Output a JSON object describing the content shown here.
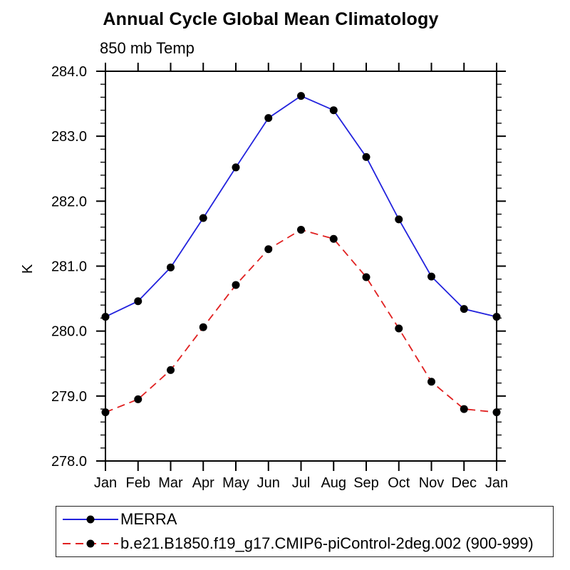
{
  "chart_data": {
    "type": "line",
    "title": "Annual Cycle Global Mean Climatology",
    "left_string": "850 mb Temp",
    "ylabel": "K",
    "xlabel": "",
    "ylim": [
      278.0,
      284.0
    ],
    "ytick_labels": [
      "278.0",
      "279.0",
      "280.0",
      "281.0",
      "282.0",
      "283.0",
      "284.0"
    ],
    "ytick_minor_interval": 0.2,
    "categories": [
      "Jan",
      "Feb",
      "Mar",
      "Apr",
      "May",
      "Jun",
      "Jul",
      "Aug",
      "Sep",
      "Oct",
      "Nov",
      "Dec",
      "Jan"
    ],
    "grid": false,
    "legend_position": "bottom-left",
    "frame_color": "#000000",
    "marker": "filled-circle",
    "marker_color": "#000000",
    "series": [
      {
        "name": "MERRA",
        "color": "#2222dd",
        "line_style": "solid",
        "values": [
          280.22,
          280.46,
          280.98,
          281.74,
          282.52,
          283.28,
          283.62,
          283.4,
          282.68,
          281.72,
          280.84,
          280.34,
          280.22
        ]
      },
      {
        "name": "b.e21.B1850.f19_g17.CMIP6-piControl-2deg.002 (900-999)",
        "color": "#e02020",
        "line_style": "dashed",
        "values": [
          278.75,
          278.95,
          279.4,
          280.06,
          280.71,
          281.26,
          281.56,
          281.42,
          280.83,
          280.04,
          279.22,
          278.8,
          278.75
        ]
      }
    ]
  }
}
